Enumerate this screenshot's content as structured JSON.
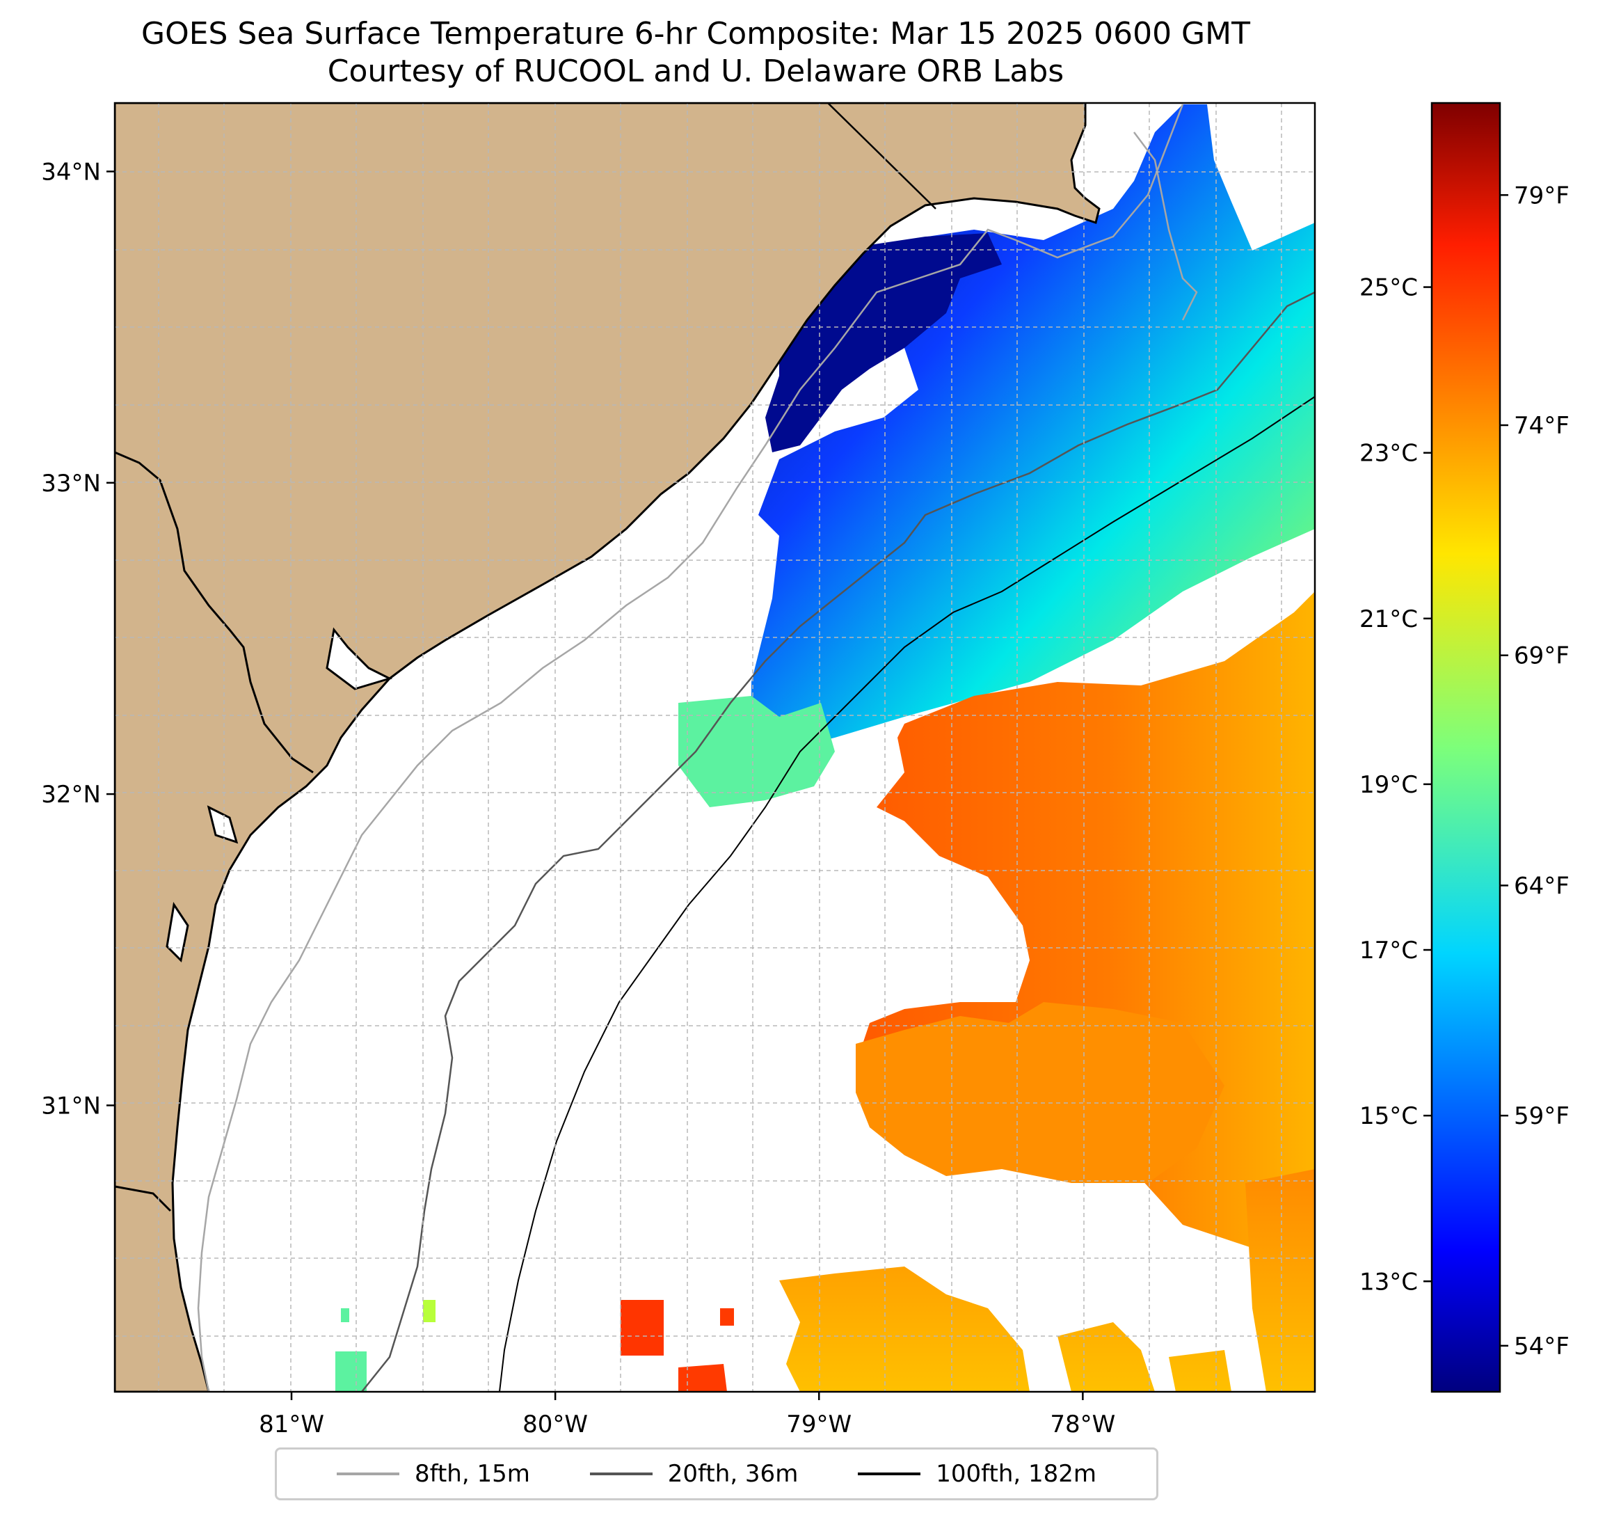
{
  "title": {
    "line1": "GOES Sea Surface Temperature 6-hr Composite: Mar 15 2025 0600 GMT",
    "line2": "Courtesy of RUCOOL and U. Delaware ORB Labs"
  },
  "map": {
    "lon_range": [
      -81.67,
      -77.12
    ],
    "lat_range": [
      30.08,
      34.22
    ],
    "lon_ticks": [
      {
        "value": -81,
        "label": "81°W"
      },
      {
        "value": -80,
        "label": "80°W"
      },
      {
        "value": -79,
        "label": "79°W"
      },
      {
        "value": -78,
        "label": "78°W"
      }
    ],
    "lat_ticks": [
      {
        "value": 34,
        "label": "34°N"
      },
      {
        "value": 33,
        "label": "33°N"
      },
      {
        "value": 32,
        "label": "32°N"
      },
      {
        "value": 31,
        "label": "31°N"
      }
    ],
    "grid": true,
    "land_color": "#d2b48c",
    "coastline": "South Carolina / Georgia coast",
    "isobaths": [
      {
        "label": "8fth, 15m",
        "color": "#a6a6a6"
      },
      {
        "label": "20fth, 36m",
        "color": "#555555"
      },
      {
        "label": "100fth, 182m",
        "color": "#000000"
      }
    ]
  },
  "colorbar": {
    "colormap": "jet",
    "celsius_ticks": [
      {
        "value": 13,
        "label": "13°C"
      },
      {
        "value": 15,
        "label": "15°C"
      },
      {
        "value": 17,
        "label": "17°C"
      },
      {
        "value": 19,
        "label": "19°C"
      },
      {
        "value": 21,
        "label": "21°C"
      },
      {
        "value": 23,
        "label": "23°C"
      },
      {
        "value": 25,
        "label": "25°C"
      }
    ],
    "fahrenheit_ticks": [
      {
        "value": 54,
        "label": "54°F"
      },
      {
        "value": 59,
        "label": "59°F"
      },
      {
        "value": 64,
        "label": "64°F"
      },
      {
        "value": 69,
        "label": "69°F"
      },
      {
        "value": 74,
        "label": "74°F"
      },
      {
        "value": 79,
        "label": "79°F"
      }
    ],
    "range_f": [
      53,
      81
    ]
  },
  "legend": {
    "items": [
      {
        "label": "8fth, 15m",
        "color": "#a6a6a6"
      },
      {
        "label": "20fth, 36m",
        "color": "#555555"
      },
      {
        "label": "100fth, 182m",
        "color": "#000000"
      }
    ]
  }
}
